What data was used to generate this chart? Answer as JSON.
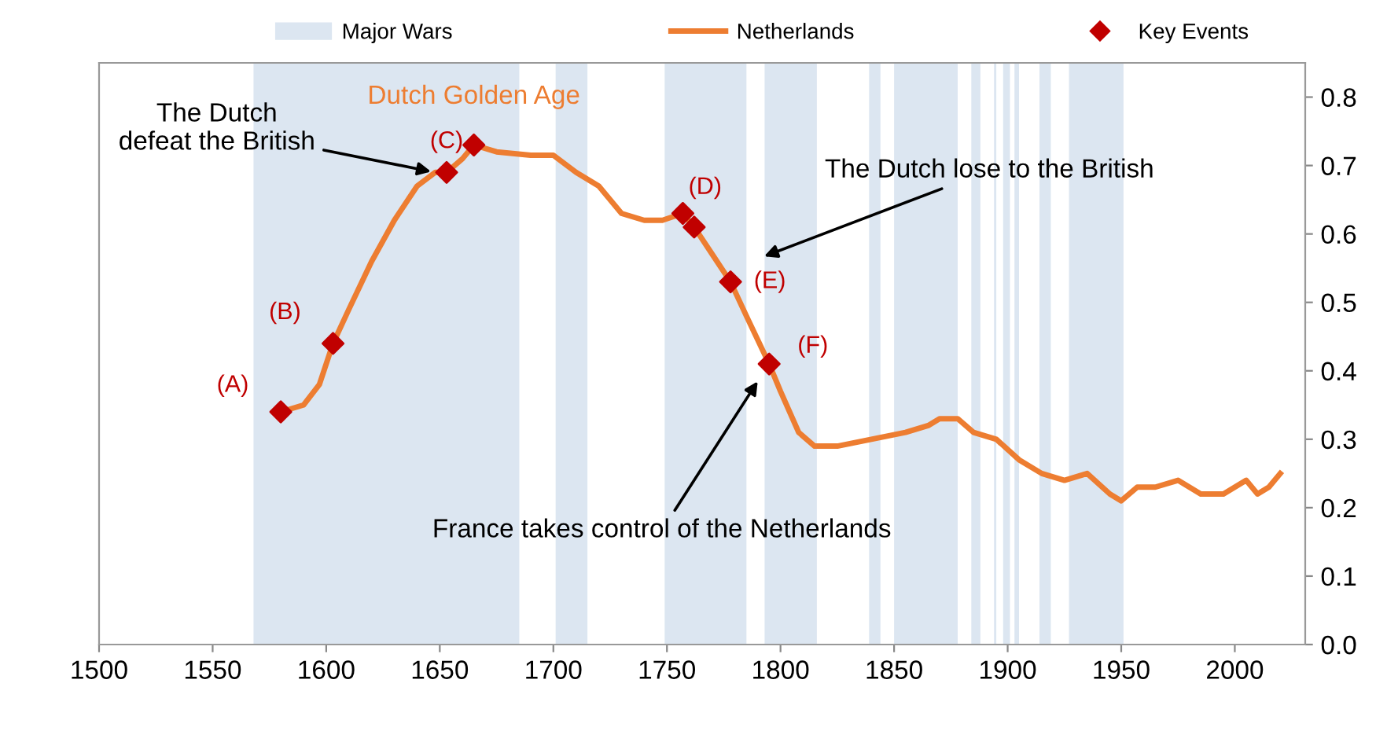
{
  "chart_data": {
    "type": "line",
    "x": [
      1580,
      1590,
      1597,
      1603,
      1610,
      1620,
      1630,
      1640,
      1648,
      1653,
      1660,
      1665,
      1675,
      1690,
      1700,
      1710,
      1720,
      1730,
      1740,
      1748,
      1757,
      1762,
      1770,
      1778,
      1785,
      1795,
      1800,
      1808,
      1815,
      1825,
      1840,
      1855,
      1865,
      1870,
      1878,
      1885,
      1895,
      1905,
      1915,
      1925,
      1935,
      1945,
      1950,
      1957,
      1965,
      1975,
      1985,
      1995,
      2005,
      2010,
      2015,
      2020
    ],
    "series": [
      {
        "name": "Netherlands",
        "color": "#ed7d31",
        "values": [
          0.34,
          0.35,
          0.38,
          0.44,
          0.49,
          0.56,
          0.62,
          0.67,
          0.69,
          0.69,
          0.71,
          0.73,
          0.72,
          0.715,
          0.715,
          0.69,
          0.67,
          0.63,
          0.62,
          0.62,
          0.63,
          0.61,
          0.57,
          0.53,
          0.48,
          0.41,
          0.37,
          0.31,
          0.29,
          0.29,
          0.3,
          0.31,
          0.32,
          0.33,
          0.33,
          0.31,
          0.3,
          0.27,
          0.25,
          0.24,
          0.25,
          0.22,
          0.21,
          0.23,
          0.23,
          0.24,
          0.22,
          0.22,
          0.24,
          0.22,
          0.23,
          0.25
        ]
      },
      {
        "name": "Key Events",
        "color": "#c00000",
        "type": "scatter",
        "marker": "diamond",
        "x": [
          1580,
          1603,
          1653,
          1665,
          1757,
          1762,
          1778,
          1795
        ],
        "values": [
          0.34,
          0.44,
          0.69,
          0.73,
          0.63,
          0.61,
          0.53,
          0.41
        ]
      }
    ],
    "bands": [
      {
        "axis": "x",
        "from": 1568,
        "to": 1685,
        "label": "Major Wars",
        "color": "#dce6f1"
      },
      {
        "axis": "x",
        "from": 1701,
        "to": 1715,
        "color": "#dce6f1"
      },
      {
        "axis": "x",
        "from": 1749,
        "to": 1785,
        "color": "#dce6f1"
      },
      {
        "axis": "x",
        "from": 1793,
        "to": 1816,
        "color": "#dce6f1"
      },
      {
        "axis": "x",
        "from": 1839,
        "to": 1844,
        "color": "#dce6f1"
      },
      {
        "axis": "x",
        "from": 1850,
        "to": 1878,
        "color": "#dce6f1"
      },
      {
        "axis": "x",
        "from": 1884,
        "to": 1888,
        "color": "#dce6f1"
      },
      {
        "axis": "x",
        "from": 1894,
        "to": 1895,
        "color": "#dce6f1"
      },
      {
        "axis": "x",
        "from": 1898,
        "to": 1901,
        "color": "#dce6f1"
      },
      {
        "axis": "x",
        "from": 1903,
        "to": 1905,
        "color": "#dce6f1"
      },
      {
        "axis": "x",
        "from": 1914,
        "to": 1919,
        "color": "#dce6f1"
      },
      {
        "axis": "x",
        "from": 1927,
        "to": 1951,
        "color": "#dce6f1"
      }
    ],
    "annotations": [
      {
        "text": "(A)",
        "x": 1580,
        "y": 0.34
      },
      {
        "text": "(B)",
        "x": 1603,
        "y": 0.44
      },
      {
        "text": "(C)",
        "x": 1653,
        "y": 0.69
      },
      {
        "text": "(D)",
        "x": 1762,
        "y": 0.61
      },
      {
        "text": "(E)",
        "x": 1778,
        "y": 0.53
      },
      {
        "text": "(F)",
        "x": 1795,
        "y": 0.41
      },
      {
        "text": "Dutch Golden Age",
        "x": 1665,
        "y": 0.73
      },
      {
        "text": "The Dutch\ndefeat the British",
        "x": 1648,
        "y": 0.69
      },
      {
        "text": "The Dutch lose to the British",
        "x": 1791,
        "y": 0.565
      },
      {
        "text": "France takes control of the Netherlands",
        "x": 1791,
        "y": 0.39
      }
    ],
    "xlim": [
      1500,
      2031
    ],
    "xticks": [
      1500,
      1550,
      1600,
      1650,
      1700,
      1750,
      1800,
      1850,
      1900,
      1950,
      2000
    ],
    "ylim": [
      0,
      0.85
    ],
    "yticks": [
      {
        "value": 0,
        "label": "0.0"
      },
      0.1,
      0.2,
      0.3,
      0.4,
      0.5,
      0.6,
      0.7,
      0.8
    ],
    "grid": false,
    "legend": "top",
    "line_style": "solid"
  }
}
